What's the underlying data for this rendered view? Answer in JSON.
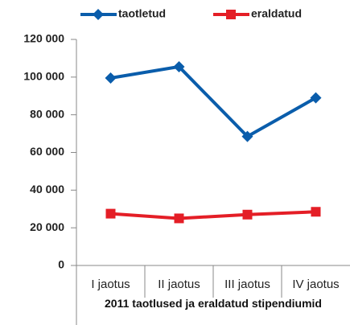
{
  "chart_data": {
    "type": "line",
    "categories": [
      "I jaotus",
      "II jaotus",
      "III jaotus",
      "IV jaotus"
    ],
    "series": [
      {
        "name": "taotletud",
        "color": "#0a5dab",
        "values": [
          99500,
          105500,
          68500,
          89000
        ]
      },
      {
        "name": "eraldatud",
        "color": "#e41e26",
        "values": [
          27500,
          25000,
          27000,
          28500
        ]
      }
    ],
    "xlabel": "2011 taotlused ja eraldatud stipendiumid",
    "ylim": [
      0,
      120000
    ],
    "yticks": [
      0,
      {
        "value": 20000,
        "label": "20 000"
      },
      {
        "value": 40000,
        "label": "40 000"
      },
      {
        "value": 60000,
        "label": "60 000"
      },
      {
        "value": 80000,
        "label": "80 000"
      },
      {
        "value": 100000,
        "label": "100 000"
      },
      {
        "value": 120000,
        "label": "120 000"
      }
    ],
    "legend": "top",
    "grid": false
  }
}
